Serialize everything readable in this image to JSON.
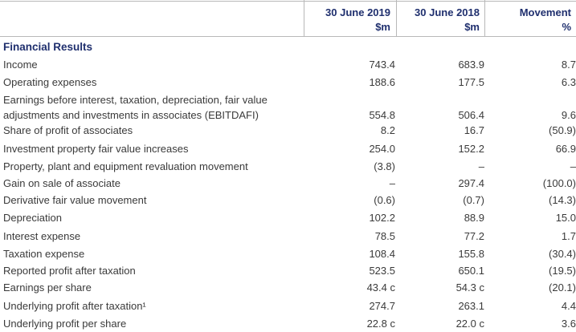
{
  "header": {
    "columns": [
      {
        "title": "30 June 2019",
        "unit": "$m"
      },
      {
        "title": "30 June 2018",
        "unit": "$m"
      },
      {
        "title": "Movement",
        "unit": "%"
      }
    ]
  },
  "table": {
    "title": "Financial Results",
    "rows": [
      [
        "Income",
        "743.4",
        "683.9",
        "8.7"
      ],
      [
        "Operating expenses",
        "188.6",
        "177.5",
        "6.3"
      ],
      [
        "Earnings before interest, taxation, depreciation, fair value adjustments and investments in associates (EBITDAFI)",
        "554.8",
        "506.4",
        "9.6"
      ],
      [
        "Share of profit of associates",
        "8.2",
        "16.7",
        "(50.9)"
      ],
      [
        "Investment property fair value increases",
        "254.0",
        "152.2",
        "66.9"
      ],
      [
        "Property, plant and equipment revaluation movement",
        "(3.8)",
        "–",
        "–"
      ],
      [
        "Gain on sale of associate",
        "–",
        "297.4",
        "(100.0)"
      ],
      [
        "Derivative fair value movement",
        "(0.6)",
        "(0.7)",
        "(14.3)"
      ],
      [
        "Depreciation",
        "102.2",
        "88.9",
        "15.0"
      ],
      [
        "Interest expense",
        "78.5",
        "77.2",
        "1.7"
      ],
      [
        "Taxation expense",
        "108.4",
        "155.8",
        "(30.4)"
      ],
      [
        "Reported profit after taxation",
        "523.5",
        "650.1",
        "(19.5)"
      ],
      [
        "Earnings per share",
        "43.4 c",
        "54.3 c",
        "(20.1)"
      ],
      [
        "Underlying profit after taxation¹",
        "274.7",
        "263.1",
        "4.4"
      ],
      [
        "Underlying profit per share",
        "22.8 c",
        "22.0 c",
        "3.6"
      ]
    ]
  }
}
